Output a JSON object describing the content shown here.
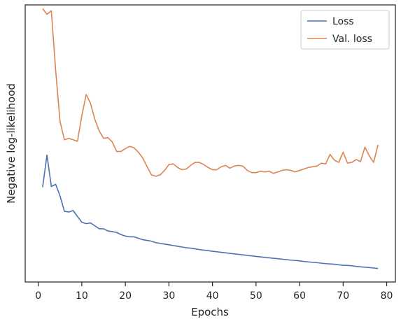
{
  "chart_data": {
    "type": "line",
    "title": "",
    "xlabel": "Epochs",
    "ylabel": "Negative log-likelihood",
    "xlim": [
      -3,
      82
    ],
    "ylim": [
      0.2,
      4.0
    ],
    "x_ticks": [
      0,
      10,
      20,
      30,
      40,
      50,
      60,
      70,
      80
    ],
    "y_ticks_visible": false,
    "grid": false,
    "legend_position": "top-right",
    "series": [
      {
        "name": "Loss",
        "color": "#4c72b0",
        "x": [
          1,
          2,
          3,
          4,
          5,
          6,
          7,
          8,
          9,
          10,
          11,
          12,
          13,
          14,
          15,
          16,
          17,
          18,
          19,
          20,
          21,
          22,
          23,
          24,
          25,
          26,
          27,
          28,
          29,
          30,
          31,
          32,
          33,
          34,
          35,
          36,
          37,
          38,
          39,
          40,
          41,
          42,
          43,
          44,
          45,
          46,
          47,
          48,
          49,
          50,
          51,
          52,
          53,
          54,
          55,
          56,
          57,
          58,
          59,
          60,
          61,
          62,
          63,
          64,
          65,
          66,
          67,
          68,
          69,
          70,
          71,
          72,
          73,
          74,
          75,
          76,
          77,
          78
        ],
        "values": [
          1.5,
          1.94,
          1.51,
          1.54,
          1.38,
          1.17,
          1.16,
          1.18,
          1.1,
          1.02,
          1.0,
          1.01,
          0.97,
          0.93,
          0.93,
          0.9,
          0.89,
          0.88,
          0.85,
          0.83,
          0.82,
          0.82,
          0.8,
          0.78,
          0.77,
          0.76,
          0.74,
          0.73,
          0.72,
          0.71,
          0.7,
          0.69,
          0.68,
          0.67,
          0.665,
          0.655,
          0.645,
          0.637,
          0.63,
          0.622,
          0.615,
          0.607,
          0.6,
          0.593,
          0.586,
          0.579,
          0.572,
          0.565,
          0.558,
          0.551,
          0.545,
          0.538,
          0.532,
          0.526,
          0.52,
          0.513,
          0.507,
          0.5,
          0.495,
          0.49,
          0.482,
          0.476,
          0.47,
          0.465,
          0.458,
          0.452,
          0.448,
          0.444,
          0.436,
          0.43,
          0.427,
          0.423,
          0.414,
          0.408,
          0.403,
          0.398,
          0.392,
          0.385
        ]
      },
      {
        "name": "Val. loss",
        "color": "#dd8452",
        "x": [
          1,
          2,
          3,
          4,
          5,
          6,
          7,
          8,
          9,
          10,
          11,
          12,
          13,
          14,
          15,
          16,
          17,
          18,
          19,
          20,
          21,
          22,
          23,
          24,
          25,
          26,
          27,
          28,
          29,
          30,
          31,
          32,
          33,
          34,
          35,
          36,
          37,
          38,
          39,
          40,
          41,
          42,
          43,
          44,
          45,
          46,
          47,
          48,
          49,
          50,
          51,
          52,
          53,
          54,
          55,
          56,
          57,
          58,
          59,
          60,
          61,
          62,
          63,
          64,
          65,
          66,
          67,
          68,
          69,
          70,
          71,
          72,
          73,
          74,
          75,
          76,
          77,
          78
        ],
        "values": [
          3.95,
          3.87,
          3.92,
          3.1,
          2.4,
          2.15,
          2.17,
          2.15,
          2.13,
          2.48,
          2.77,
          2.65,
          2.43,
          2.27,
          2.17,
          2.18,
          2.12,
          1.99,
          1.99,
          2.03,
          2.06,
          2.04,
          1.98,
          1.9,
          1.78,
          1.67,
          1.65,
          1.67,
          1.73,
          1.81,
          1.82,
          1.77,
          1.74,
          1.75,
          1.8,
          1.84,
          1.84,
          1.81,
          1.77,
          1.74,
          1.74,
          1.78,
          1.8,
          1.76,
          1.79,
          1.8,
          1.79,
          1.73,
          1.7,
          1.7,
          1.72,
          1.71,
          1.72,
          1.69,
          1.71,
          1.73,
          1.74,
          1.73,
          1.71,
          1.73,
          1.75,
          1.77,
          1.78,
          1.79,
          1.83,
          1.82,
          1.95,
          1.87,
          1.84,
          1.98,
          1.83,
          1.84,
          1.88,
          1.85,
          2.05,
          1.93,
          1.84,
          2.08
        ]
      }
    ]
  }
}
